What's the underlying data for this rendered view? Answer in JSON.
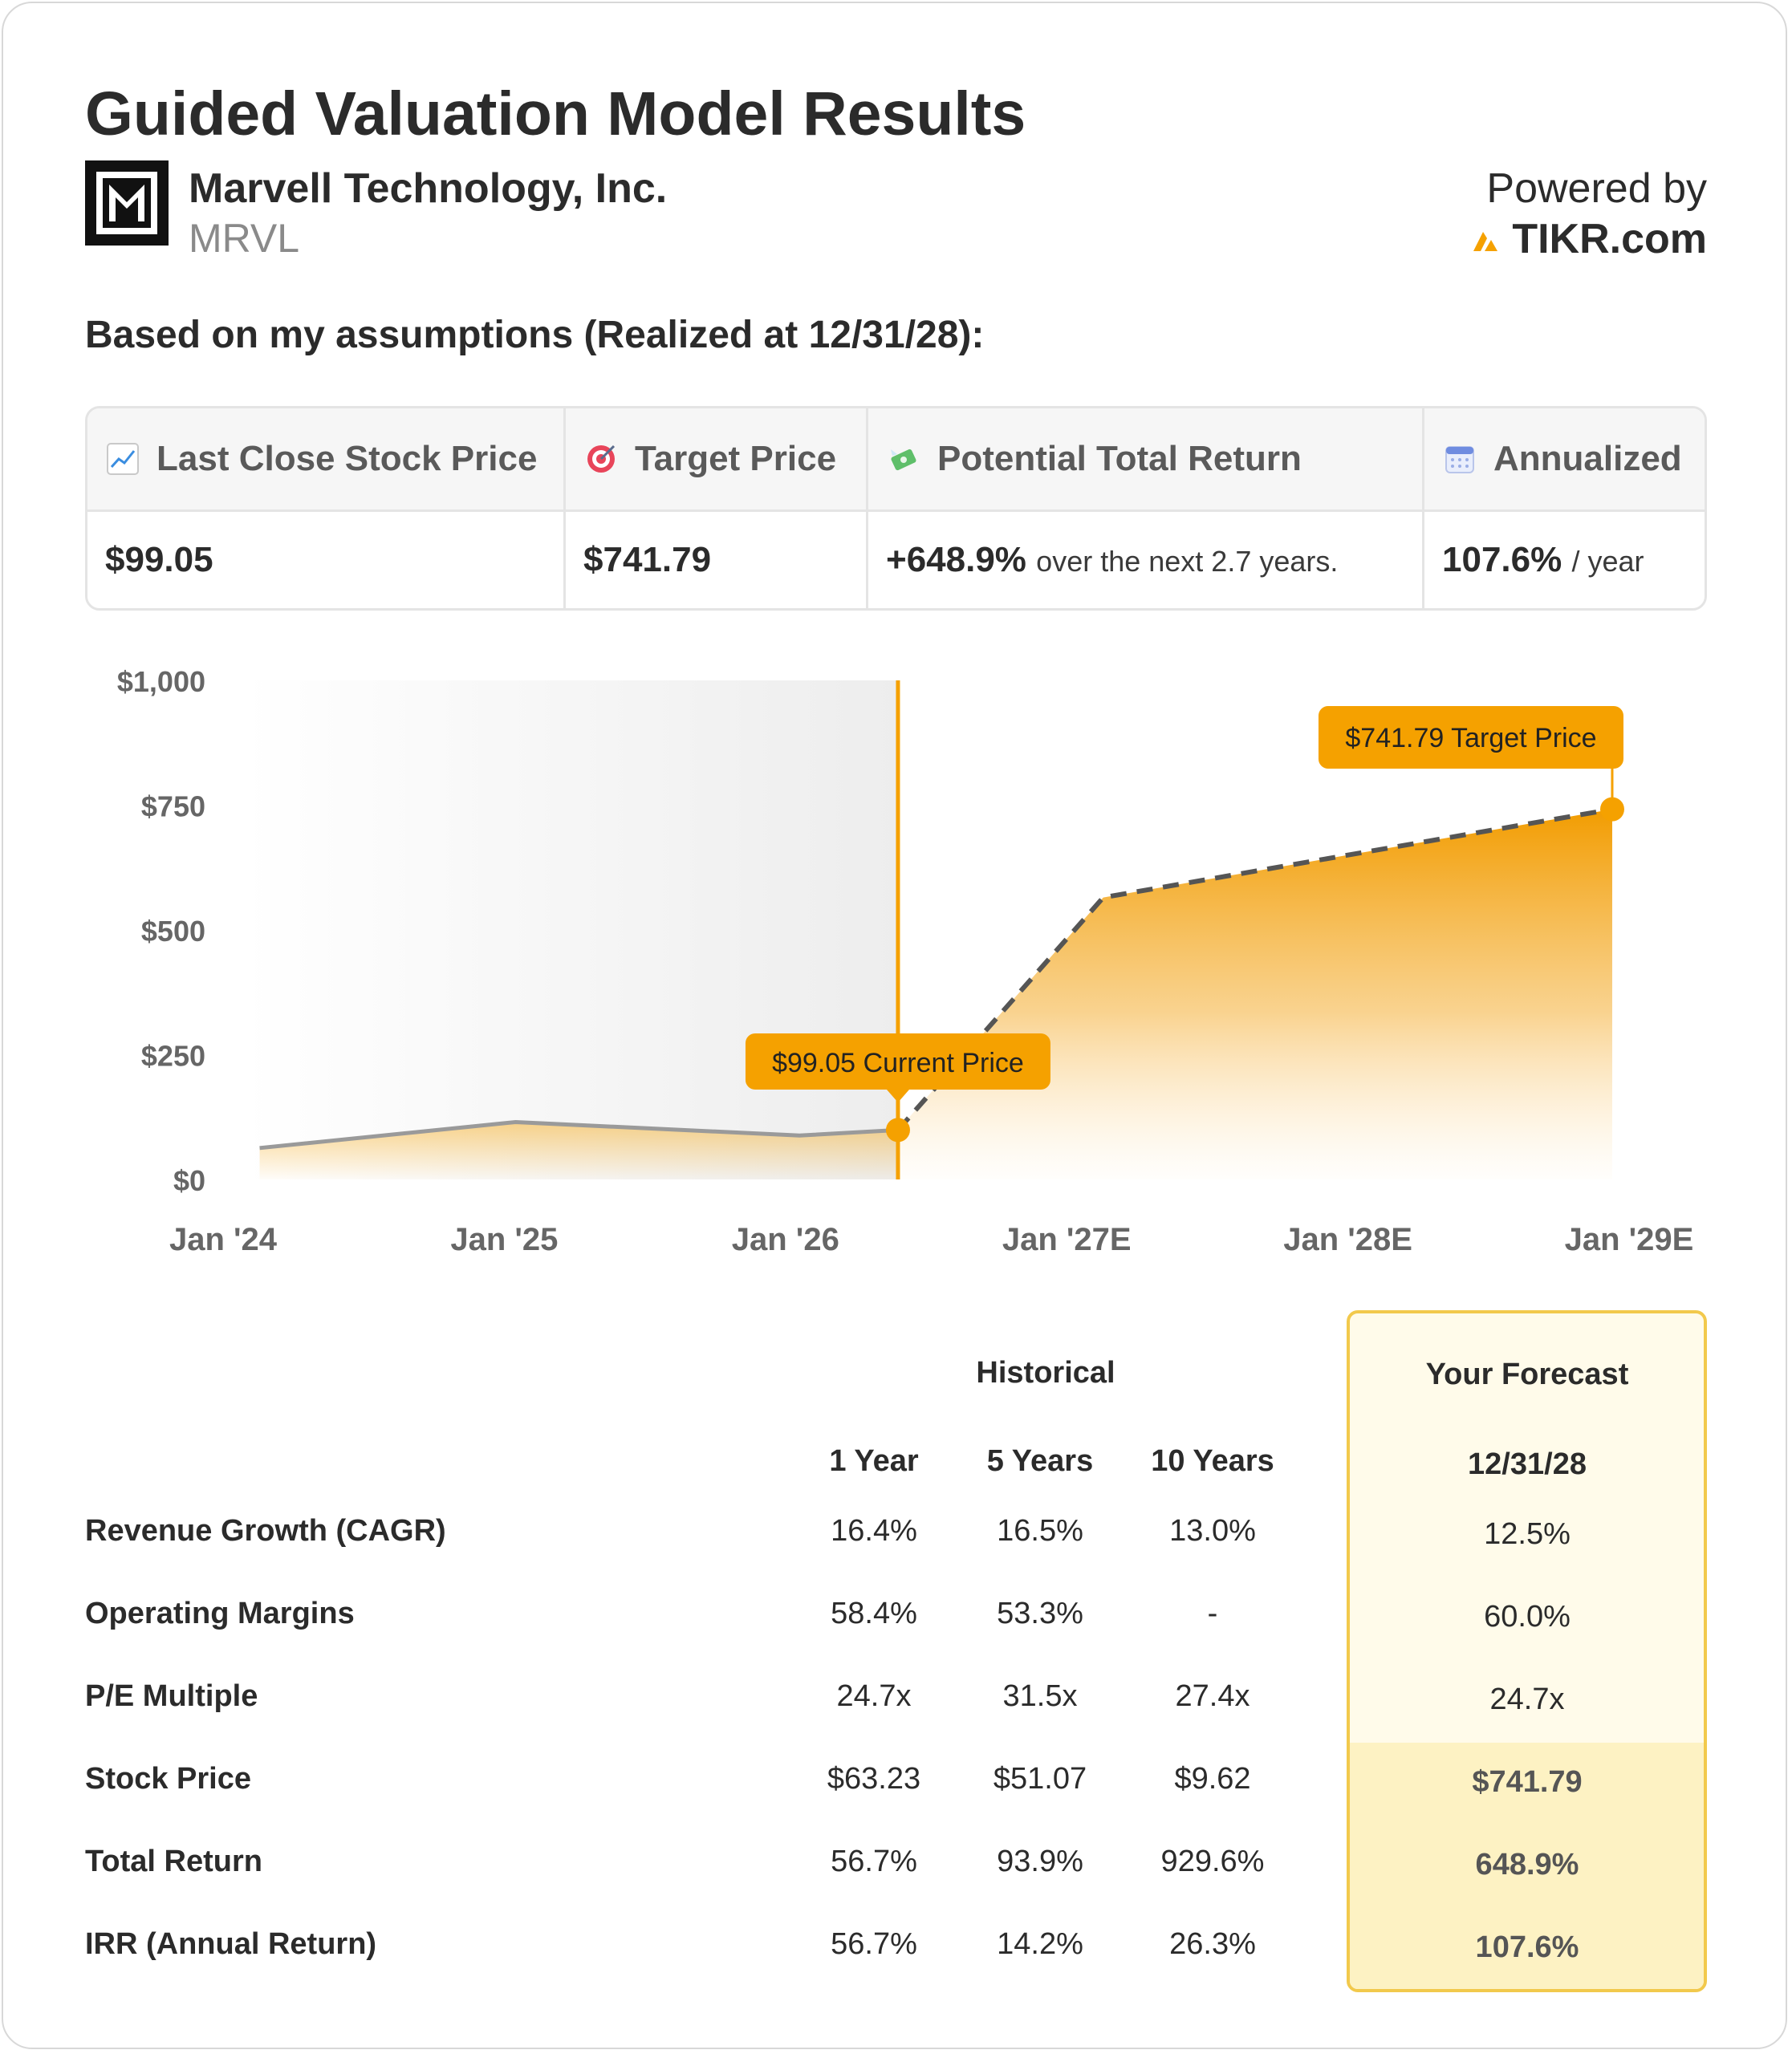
{
  "header": {
    "title": "Guided Valuation Model Results",
    "company_name": "Marvell Technology, Inc.",
    "ticker": "MRVL",
    "powered_by": "Powered by",
    "brand": "TIKR.com"
  },
  "subtitle": "Based on my assumptions (Realized at 12/31/28):",
  "summary": {
    "last_close_label": "Last Close Stock Price",
    "last_close_value": "$99.05",
    "target_label": "Target Price",
    "target_value": "$741.79",
    "return_label": "Potential Total Return",
    "return_value": "+648.9%",
    "return_suffix": "over the next 2.7 years.",
    "annualized_label": "Annualized",
    "annualized_value": "107.6%",
    "annualized_suffix": "/ year"
  },
  "chart_data": {
    "type": "area",
    "x_labels": [
      "Jan '24",
      "Jan '25",
      "Jan '26",
      "Jan '27E",
      "Jan '28E",
      "Jan '29E"
    ],
    "y_tick_labels": [
      "$0",
      "$250",
      "$500",
      "$750",
      "$1,000"
    ],
    "y_ticks": [
      0,
      250,
      500,
      750,
      1000
    ],
    "ylim": [
      0,
      1000
    ],
    "xlim": [
      2024.0,
      2029.0
    ],
    "historical": {
      "x": [
        "2024-02",
        "2025-01",
        "2026-01",
        "2026-05"
      ],
      "xnum": [
        2024.13,
        2025.04,
        2026.05,
        2026.4
      ],
      "y": [
        63,
        115,
        88,
        99.05
      ]
    },
    "forecast": {
      "x": [
        "2026-05",
        "2027-01",
        "2028-12"
      ],
      "xnum": [
        2026.4,
        2027.13,
        2028.94
      ],
      "y": [
        99.05,
        565,
        741.79
      ]
    },
    "current_marker": {
      "label": "$99.05 Current Price",
      "value": 99.05,
      "xnum": 2026.4
    },
    "target_marker": {
      "label": "$741.79 Target Price",
      "value": 741.79,
      "xnum": 2028.94
    },
    "colors": {
      "accent": "#f5a100",
      "historical_line": "#9a9a9a",
      "forecast_line": "#555555"
    }
  },
  "table": {
    "historical_header": "Historical",
    "forecast_header": "Your Forecast",
    "columns": [
      "1 Year",
      "5 Years",
      "10 Years"
    ],
    "forecast_column": "12/31/28",
    "rows": [
      {
        "label": "Revenue Growth (CAGR)",
        "values": [
          "16.4%",
          "16.5%",
          "13.0%"
        ],
        "forecast": "12.5%"
      },
      {
        "label": "Operating Margins",
        "values": [
          "58.4%",
          "53.3%",
          "-"
        ],
        "forecast": "60.0%"
      },
      {
        "label": "P/E Multiple",
        "values": [
          "24.7x",
          "31.5x",
          "27.4x"
        ],
        "forecast": "24.7x"
      },
      {
        "label": "Stock Price",
        "values": [
          "$63.23",
          "$51.07",
          "$9.62"
        ],
        "forecast": "$741.79"
      },
      {
        "label": "Total Return",
        "values": [
          "56.7%",
          "93.9%",
          "929.6%"
        ],
        "forecast": "648.9%"
      },
      {
        "label": "IRR (Annual Return)",
        "values": [
          "56.7%",
          "14.2%",
          "26.3%"
        ],
        "forecast": "107.6%"
      }
    ]
  }
}
